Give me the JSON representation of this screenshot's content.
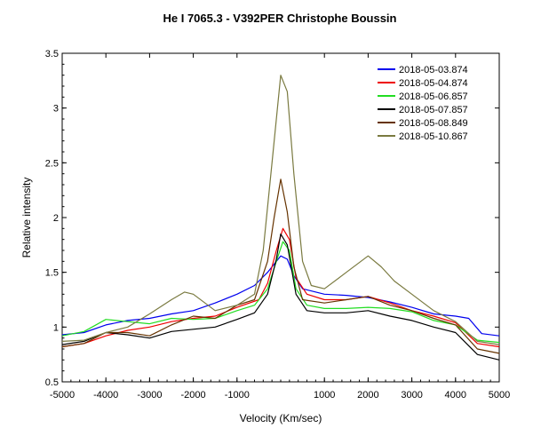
{
  "chart_data": {
    "type": "line",
    "title": "He I 7065.3 - V392PER   Christophe Boussin",
    "xlabel": "Velocity (Km/sec)",
    "ylabel": "Relative intensity",
    "xlim": [
      -5000,
      5000
    ],
    "ylim": [
      0.5,
      3.5
    ],
    "xticks": [
      -5000,
      -4000,
      -3000,
      -2000,
      -1000,
      1000,
      2000,
      3000,
      4000,
      5000
    ],
    "yticks": [
      0.5,
      1,
      1.5,
      2,
      2.5,
      3,
      3.5
    ],
    "xtick_labels": [
      "-5000",
      "-4000",
      "-3000",
      "-2000",
      "-1000",
      "1000",
      "2000",
      "3000",
      "4000",
      "5000"
    ],
    "ytick_labels": [
      "0.5",
      "1",
      "1.5",
      "2",
      "2.5",
      "3",
      "3.5"
    ],
    "legend_position": "top-right",
    "grid": false,
    "series": [
      {
        "name": "2018-05-03.874",
        "color": "#0000ee",
        "points": [
          [
            -5000,
            0.93
          ],
          [
            -4500,
            0.95
          ],
          [
            -4000,
            1.02
          ],
          [
            -3500,
            1.06
          ],
          [
            -3000,
            1.08
          ],
          [
            -2500,
            1.12
          ],
          [
            -2000,
            1.15
          ],
          [
            -1500,
            1.22
          ],
          [
            -1000,
            1.3
          ],
          [
            -600,
            1.38
          ],
          [
            -300,
            1.5
          ],
          [
            0,
            1.65
          ],
          [
            150,
            1.62
          ],
          [
            300,
            1.47
          ],
          [
            500,
            1.35
          ],
          [
            1000,
            1.3
          ],
          [
            1500,
            1.29
          ],
          [
            2000,
            1.27
          ],
          [
            2500,
            1.23
          ],
          [
            3000,
            1.18
          ],
          [
            3500,
            1.12
          ],
          [
            4000,
            1.1
          ],
          [
            4300,
            1.08
          ],
          [
            4600,
            0.94
          ],
          [
            5000,
            0.92
          ]
        ]
      },
      {
        "name": "2018-05-04.874",
        "color": "#ee0000",
        "points": [
          [
            -5000,
            0.82
          ],
          [
            -4500,
            0.85
          ],
          [
            -4000,
            0.92
          ],
          [
            -3500,
            0.97
          ],
          [
            -3000,
            1.0
          ],
          [
            -2500,
            1.05
          ],
          [
            -2000,
            1.08
          ],
          [
            -1500,
            1.1
          ],
          [
            -1000,
            1.18
          ],
          [
            -500,
            1.25
          ],
          [
            -300,
            1.4
          ],
          [
            -100,
            1.7
          ],
          [
            50,
            1.9
          ],
          [
            200,
            1.8
          ],
          [
            350,
            1.45
          ],
          [
            600,
            1.3
          ],
          [
            1000,
            1.25
          ],
          [
            1500,
            1.25
          ],
          [
            2000,
            1.28
          ],
          [
            2500,
            1.22
          ],
          [
            3000,
            1.15
          ],
          [
            3500,
            1.1
          ],
          [
            4000,
            1.04
          ],
          [
            4500,
            0.85
          ],
          [
            5000,
            0.82
          ]
        ]
      },
      {
        "name": "2018-05-06.857",
        "color": "#22dd22",
        "points": [
          [
            -5000,
            0.92
          ],
          [
            -4500,
            0.96
          ],
          [
            -4000,
            1.07
          ],
          [
            -3500,
            1.05
          ],
          [
            -3000,
            1.03
          ],
          [
            -2500,
            1.08
          ],
          [
            -2000,
            1.07
          ],
          [
            -1500,
            1.08
          ],
          [
            -1000,
            1.15
          ],
          [
            -600,
            1.2
          ],
          [
            -300,
            1.35
          ],
          [
            -100,
            1.6
          ],
          [
            50,
            1.78
          ],
          [
            200,
            1.7
          ],
          [
            350,
            1.35
          ],
          [
            600,
            1.2
          ],
          [
            1000,
            1.17
          ],
          [
            1500,
            1.17
          ],
          [
            2000,
            1.18
          ],
          [
            2500,
            1.17
          ],
          [
            3000,
            1.14
          ],
          [
            3500,
            1.06
          ],
          [
            4000,
            1.02
          ],
          [
            4500,
            0.88
          ],
          [
            5000,
            0.86
          ]
        ]
      },
      {
        "name": "2018-05-07.857",
        "color": "#000000",
        "points": [
          [
            -5000,
            0.84
          ],
          [
            -4500,
            0.87
          ],
          [
            -4000,
            0.95
          ],
          [
            -3500,
            0.93
          ],
          [
            -3000,
            0.9
          ],
          [
            -2500,
            0.96
          ],
          [
            -2000,
            0.98
          ],
          [
            -1500,
            1.0
          ],
          [
            -1000,
            1.07
          ],
          [
            -600,
            1.13
          ],
          [
            -300,
            1.3
          ],
          [
            -100,
            1.62
          ],
          [
            0,
            1.85
          ],
          [
            150,
            1.75
          ],
          [
            350,
            1.3
          ],
          [
            600,
            1.15
          ],
          [
            1000,
            1.13
          ],
          [
            1500,
            1.13
          ],
          [
            2000,
            1.15
          ],
          [
            2500,
            1.1
          ],
          [
            3000,
            1.06
          ],
          [
            3500,
            1.0
          ],
          [
            4000,
            0.95
          ],
          [
            4500,
            0.75
          ],
          [
            5000,
            0.7
          ]
        ]
      },
      {
        "name": "2018-05-08.849",
        "color": "#663300",
        "points": [
          [
            -5000,
            0.82
          ],
          [
            -4500,
            0.85
          ],
          [
            -4000,
            0.95
          ],
          [
            -3500,
            0.95
          ],
          [
            -3000,
            0.92
          ],
          [
            -2500,
            1.02
          ],
          [
            -2000,
            1.1
          ],
          [
            -1500,
            1.08
          ],
          [
            -1000,
            1.2
          ],
          [
            -600,
            1.25
          ],
          [
            -300,
            1.6
          ],
          [
            -150,
            2.0
          ],
          [
            0,
            2.35
          ],
          [
            150,
            2.05
          ],
          [
            300,
            1.55
          ],
          [
            500,
            1.25
          ],
          [
            1000,
            1.22
          ],
          [
            1500,
            1.25
          ],
          [
            2000,
            1.28
          ],
          [
            2500,
            1.2
          ],
          [
            3000,
            1.15
          ],
          [
            3500,
            1.08
          ],
          [
            4000,
            1.02
          ],
          [
            4500,
            0.8
          ],
          [
            5000,
            0.76
          ]
        ]
      },
      {
        "name": "2018-05-10.867",
        "color": "#7a7a40",
        "points": [
          [
            -5000,
            0.87
          ],
          [
            -4500,
            0.88
          ],
          [
            -4000,
            0.95
          ],
          [
            -3500,
            1.0
          ],
          [
            -3000,
            1.12
          ],
          [
            -2500,
            1.25
          ],
          [
            -2200,
            1.32
          ],
          [
            -2000,
            1.3
          ],
          [
            -1500,
            1.15
          ],
          [
            -1000,
            1.2
          ],
          [
            -600,
            1.3
          ],
          [
            -400,
            1.7
          ],
          [
            -200,
            2.5
          ],
          [
            0,
            3.3
          ],
          [
            150,
            3.15
          ],
          [
            300,
            2.4
          ],
          [
            500,
            1.6
          ],
          [
            700,
            1.38
          ],
          [
            1000,
            1.35
          ],
          [
            1500,
            1.5
          ],
          [
            2000,
            1.65
          ],
          [
            2300,
            1.55
          ],
          [
            2600,
            1.42
          ],
          [
            3000,
            1.3
          ],
          [
            3500,
            1.15
          ],
          [
            4000,
            1.05
          ],
          [
            4500,
            0.87
          ],
          [
            5000,
            0.84
          ]
        ]
      }
    ]
  }
}
